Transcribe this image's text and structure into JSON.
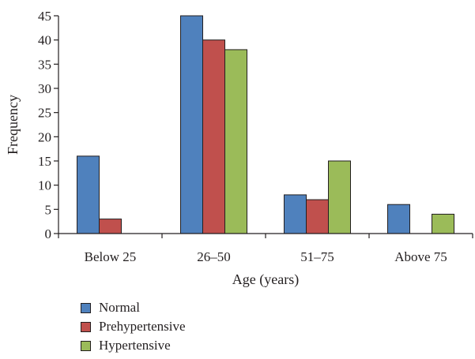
{
  "chart_data": {
    "type": "bar",
    "categories": [
      "Below 25",
      "26–50",
      "51–75",
      "Above 75"
    ],
    "series": [
      {
        "name": "Normal",
        "values": [
          16,
          45,
          8,
          6
        ],
        "color": "#4f81bd"
      },
      {
        "name": "Prehypertensive",
        "values": [
          3,
          40,
          7,
          0
        ],
        "color": "#c0504d"
      },
      {
        "name": "Hypertensive",
        "values": [
          0,
          38,
          15,
          4
        ],
        "color": "#9bbb59"
      }
    ],
    "xlabel": "Age (years)",
    "ylabel": "Frequency",
    "ylim": [
      0,
      45
    ],
    "yticks": [
      0,
      5,
      10,
      15,
      20,
      25,
      30,
      35,
      40,
      45
    ],
    "grid": false,
    "legend_position": "bottom-left"
  }
}
